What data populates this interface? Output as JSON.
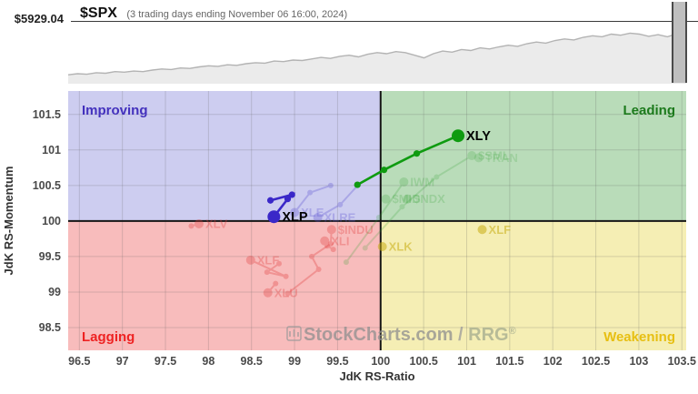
{
  "header": {
    "symbol": "$SPX",
    "subtitle": "(3 trading days ending November 06 16:00, 2024)",
    "price_label": "$5929.04"
  },
  "watermark": {
    "icon": "chart-grid-icon",
    "main": "StockCharts.com",
    "sep": " / ",
    "brand": "RRG",
    "reg": "®"
  },
  "chart_data": [
    {
      "type": "area",
      "name": "spx-sparkline",
      "title": "$SPX price over 3 trading days",
      "values": [
        0.1,
        0.12,
        0.11,
        0.14,
        0.13,
        0.16,
        0.15,
        0.17,
        0.16,
        0.19,
        0.21,
        0.2,
        0.23,
        0.22,
        0.25,
        0.27,
        0.26,
        0.29,
        0.28,
        0.31,
        0.33,
        0.32,
        0.36,
        0.35,
        0.38,
        0.37,
        0.4,
        0.43,
        0.41,
        0.45,
        0.47,
        0.44,
        0.49,
        0.52,
        0.5,
        0.54,
        0.52,
        0.47,
        0.42,
        0.5,
        0.55,
        0.53,
        0.58,
        0.56,
        0.61,
        0.59,
        0.63,
        0.66,
        0.64,
        0.69,
        0.72,
        0.7,
        0.75,
        0.78,
        0.76,
        0.81,
        0.84,
        0.82,
        0.87,
        0.85,
        0.89,
        0.87,
        0.83,
        0.86,
        0.82,
        0.88,
        0.93
      ],
      "line_color": "#b3b3b3",
      "fill_color": "#ebebeb",
      "last_price": 5929.04
    },
    {
      "type": "scatter",
      "name": "rrg",
      "xlabel": "JdK RS-Ratio",
      "ylabel": "JdK RS-Momentum",
      "xlim": [
        96.37,
        103.55
      ],
      "ylim": [
        98.18,
        101.83
      ],
      "xticks": [
        96.5,
        97,
        97.5,
        98,
        98.5,
        99,
        99.5,
        100,
        100.5,
        101,
        101.5,
        102,
        102.5,
        103,
        103.5
      ],
      "yticks": [
        98.5,
        99,
        99.5,
        100,
        100.5,
        101,
        101.5
      ],
      "grid": true,
      "quadrants": {
        "improving": {
          "label": "Improving",
          "bg": "#cdcdf0",
          "text": "#4331bd"
        },
        "leading": {
          "label": "Leading",
          "bg": "#b9dcb9",
          "text": "#1c7a1c"
        },
        "lagging": {
          "label": "Lagging",
          "bg": "#f8bcbc",
          "text": "#ee2222"
        },
        "weakening": {
          "label": "Weakening",
          "bg": "#f5eeb4",
          "text": "#e7bf12"
        }
      },
      "series": [
        {
          "ticker": "XLY",
          "color": "#0f9b10",
          "tail": [
            [
              99.73,
              100.51
            ],
            [
              100.04,
              100.72
            ],
            [
              100.42,
              100.95
            ]
          ],
          "head": [
            100.9,
            101.2
          ]
        },
        {
          "ticker": "XLP",
          "color": "#3a28c8",
          "tail": [
            [
              98.72,
              100.29
            ],
            [
              98.97,
              100.37
            ],
            [
              98.92,
              100.31
            ]
          ],
          "head": [
            98.76,
            100.06
          ]
        }
      ],
      "ghosts": [
        {
          "ticker": "XLE",
          "color": "#5a4fd0",
          "opacity": 0.3,
          "head": [
            99.0,
            100.12
          ],
          "tail": [
            [
              99.42,
              100.5
            ],
            [
              99.18,
              100.4
            ]
          ]
        },
        {
          "ticker": "XLRE",
          "color": "#5a4fd0",
          "opacity": 0.3,
          "head": [
            99.27,
            100.05
          ],
          "tail": [
            [
              99.74,
              100.51
            ],
            [
              99.53,
              100.23
            ]
          ]
        },
        {
          "ticker": "XLV",
          "color": "#e23b3b",
          "opacity": 0.32,
          "head": [
            97.89,
            99.96
          ],
          "tail": [
            [
              97.8,
              99.93
            ]
          ]
        },
        {
          "ticker": "$INDU",
          "color": "#e23b3b",
          "opacity": 0.32,
          "head": [
            99.43,
            99.88
          ],
          "tail": [
            [
              98.92,
              98.98
            ],
            [
              99.28,
              99.32
            ],
            [
              99.2,
              99.5
            ],
            [
              99.42,
              99.68
            ]
          ]
        },
        {
          "ticker": "XLI",
          "color": "#e23b3b",
          "opacity": 0.32,
          "head": [
            99.35,
            99.72
          ],
          "tail": [
            [
              99.45,
              99.6
            ],
            [
              99.38,
              99.65
            ]
          ]
        },
        {
          "ticker": "XLF",
          "color": "#e23b3b",
          "opacity": 0.32,
          "head": [
            98.49,
            99.45
          ],
          "tail": [
            [
              98.82,
              99.4
            ],
            [
              98.68,
              99.28
            ],
            [
              98.9,
              99.22
            ]
          ]
        },
        {
          "ticker": "XLU",
          "color": "#e23b3b",
          "opacity": 0.32,
          "head": [
            98.69,
            98.99
          ],
          "tail": [
            [
              98.78,
              99.12
            ]
          ]
        },
        {
          "ticker": "$SML",
          "color": "#2f9e2f",
          "opacity": 0.2,
          "head": [
            101.06,
            100.92
          ],
          "tail": [
            [
              99.82,
              99.62
            ],
            [
              100.25,
              100.2
            ],
            [
              100.65,
              100.62
            ]
          ]
        },
        {
          "ticker": "TRAN",
          "color": "#2f9e2f",
          "opacity": 0.18,
          "head": [
            101.14,
            100.89
          ],
          "tail": []
        },
        {
          "ticker": "IWM",
          "color": "#2f9e2f",
          "opacity": 0.22,
          "head": [
            100.27,
            100.55
          ],
          "tail": [
            [
              99.6,
              99.42
            ],
            [
              99.98,
              100.05
            ]
          ]
        },
        {
          "ticker": "$MID",
          "color": "#2f9e2f",
          "opacity": 0.22,
          "head": [
            100.06,
            100.31
          ],
          "tail": []
        },
        {
          "ticker": "$NDX",
          "color": "#2f9e2f",
          "opacity": 0.22,
          "head": [
            100.31,
            100.31
          ],
          "tail": []
        },
        {
          "ticker": "XLK",
          "color": "#c9ad13",
          "opacity": 0.55,
          "head": [
            100.02,
            99.64
          ],
          "tail": []
        },
        {
          "ticker": "XLF",
          "color": "#c9ad13",
          "opacity": 0.55,
          "head": [
            101.18,
            99.88
          ],
          "tail": []
        }
      ]
    }
  ]
}
